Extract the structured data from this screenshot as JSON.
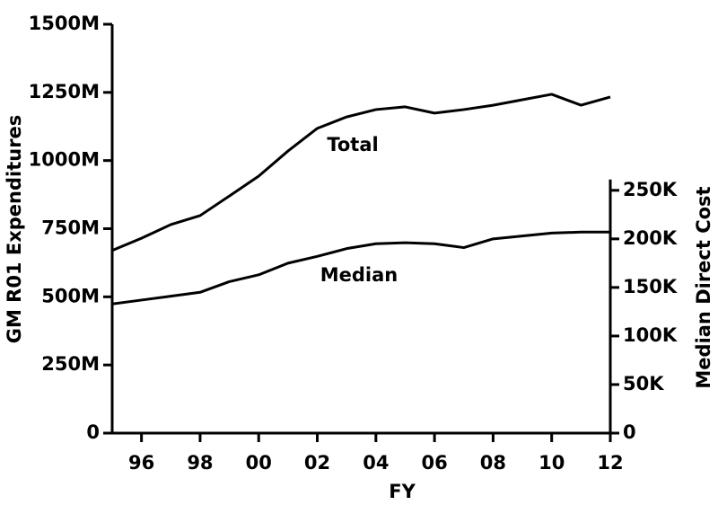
{
  "chart_data": {
    "type": "line",
    "x_label": "FY",
    "y_label": "GM R01 Expenditures",
    "y2_label": "Median Direct Cost",
    "x": [
      1995,
      1996,
      1997,
      1998,
      1999,
      2000,
      2001,
      2002,
      2003,
      2004,
      2005,
      2006,
      2007,
      2008,
      2009,
      2010,
      2011,
      2012
    ],
    "series": [
      {
        "name": "Total",
        "color": "#000000",
        "values": [
          670,
          715,
          765,
          798,
          870,
          943,
          1035,
          1118,
          1160,
          1187,
          1197,
          1174,
          1187,
          1203,
          1223,
          1243,
          1203,
          1233
        ]
      },
      {
        "name": "Median",
        "color": "#000000",
        "axis": "y2",
        "values": [
          133,
          137,
          141,
          145,
          156,
          163,
          175,
          182,
          190,
          195,
          196,
          195,
          191,
          200,
          203,
          206,
          207,
          207
        ]
      }
    ],
    "xlim": [
      1995,
      2012
    ],
    "xticks": [
      {
        "value": 1996,
        "label": "96"
      },
      {
        "value": 1998,
        "label": "98"
      },
      {
        "value": 2000,
        "label": "00"
      },
      {
        "value": 2002,
        "label": "02"
      },
      {
        "value": 2004,
        "label": "04"
      },
      {
        "value": 2006,
        "label": "06"
      },
      {
        "value": 2008,
        "label": "08"
      },
      {
        "value": 2010,
        "label": "10"
      },
      {
        "value": 2012,
        "label": "12"
      }
    ],
    "ylim": [
      0,
      1500
    ],
    "yticks": [
      0,
      {
        "value": 250,
        "label": "250M"
      },
      {
        "value": 500,
        "label": "500M"
      },
      {
        "value": 750,
        "label": "750M"
      },
      {
        "value": 1000,
        "label": "1000M"
      },
      {
        "value": 1250,
        "label": "1250M"
      },
      {
        "value": 1500,
        "label": "1500M"
      }
    ],
    "y2lim": [
      0,
      421
    ],
    "y2ticks": [
      0,
      {
        "value": 50,
        "label": "50K"
      },
      {
        "value": 100,
        "label": "100K"
      },
      {
        "value": 150,
        "label": "150K"
      },
      {
        "value": 200,
        "label": "200K"
      },
      {
        "value": 250,
        "label": "250K"
      }
    ],
    "annotations": [
      "Total",
      "Median"
    ]
  }
}
